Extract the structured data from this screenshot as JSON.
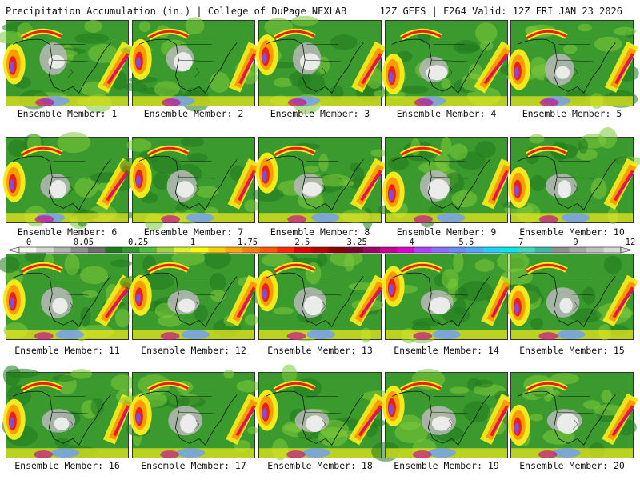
{
  "header": {
    "left": "Precipitation Accumulation (in.) | College of DuPage NEXLAB",
    "right": "12Z GEFS | F264 Valid: 12Z FRI JAN 23 2026"
  },
  "members": [
    {
      "label": "Ensemble Member: 1"
    },
    {
      "label": "Ensemble Member: 2"
    },
    {
      "label": "Ensemble Member: 3"
    },
    {
      "label": "Ensemble Member: 4"
    },
    {
      "label": "Ensemble Member: 5"
    },
    {
      "label": "Ensemble Member: 6"
    },
    {
      "label": "Ensemble Member: 7"
    },
    {
      "label": "Ensemble Member: 8"
    },
    {
      "label": "Ensemble Member: 9"
    },
    {
      "label": "Ensemble Member: 10"
    },
    {
      "label": "Ensemble Member: 11"
    },
    {
      "label": "Ensemble Member: 12"
    },
    {
      "label": "Ensemble Member: 13"
    },
    {
      "label": "Ensemble Member: 14"
    },
    {
      "label": "Ensemble Member: 15"
    },
    {
      "label": "Ensemble Member: 16"
    },
    {
      "label": "Ensemble Member: 17"
    },
    {
      "label": "Ensemble Member: 18"
    },
    {
      "label": "Ensemble Member: 19"
    },
    {
      "label": "Ensemble Member: 20"
    }
  ],
  "colorbar": {
    "tick_labels": [
      "0",
      "0.05",
      "0.25",
      "1",
      "1.75",
      "2.5",
      "3.25",
      "4",
      "5.5",
      "7",
      "9",
      "12"
    ],
    "colors": [
      "#f4f4f4",
      "#d6d6d6",
      "#b4b4b4",
      "#8f8f8f",
      "#6e6e6e",
      "#1c7a1c",
      "#2e9a2e",
      "#4fbf3a",
      "#9fd63a",
      "#dfef2c",
      "#ffff00",
      "#ffd000",
      "#ffa800",
      "#ff8000",
      "#ff5a00",
      "#ff2a00",
      "#e00000",
      "#b80000",
      "#8c0000",
      "#7a0030",
      "#a0006a",
      "#c8009a",
      "#e000d0",
      "#b040ff",
      "#8a6cff",
      "#6a8cff",
      "#4aaaff",
      "#20d0ff",
      "#00e8e8",
      "#40d8c0",
      "#3ab8a8",
      "#909090",
      "#a8a8a8",
      "#c0c0c0",
      "#d8d8d8"
    ]
  },
  "map_colors": {
    "base": "#3a9a2e",
    "dark_green": "#1f7a1f",
    "light_green": "#7ecb3a",
    "yellow": "#f3ea1e",
    "orange": "#ff9a00",
    "red": "#e8201a",
    "magenta": "#c8108c",
    "purple": "#8a4ad8",
    "blue": "#6a9cff",
    "white": "#f2f2f2",
    "gray": "#b8b8b8",
    "coast": "#111111"
  }
}
